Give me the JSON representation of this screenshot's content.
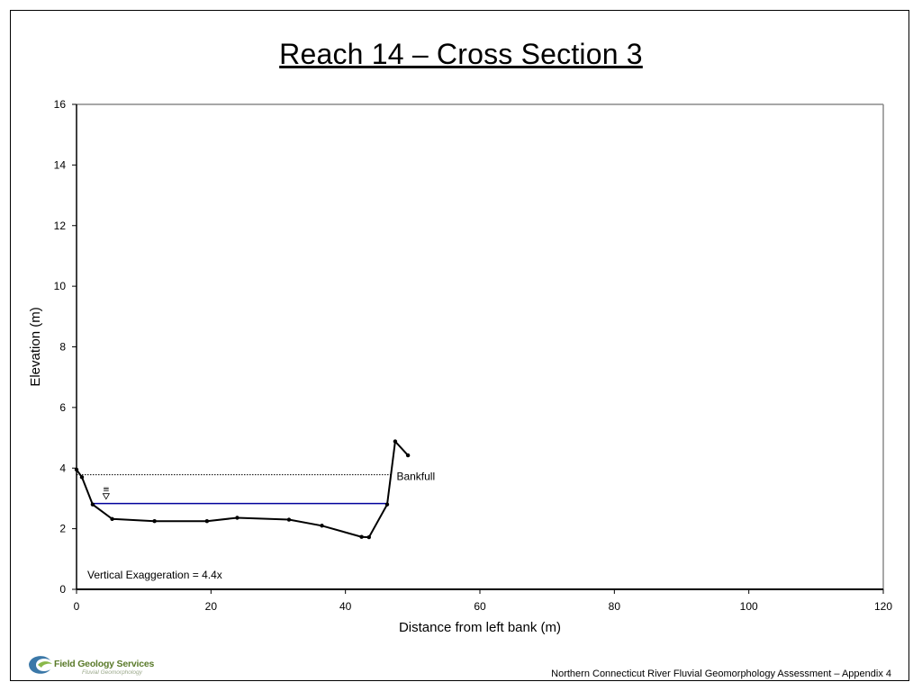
{
  "title": "Reach 14 – Cross Section 3",
  "footer": "Northern Connecticut River Fluvial Geomorphology Assessment – Appendix 4",
  "logo": {
    "name": "Field Geology Services",
    "tagline": "Fluvial Geomorphology",
    "icon": "fgs-swoosh-logo"
  },
  "chart_data": {
    "type": "line",
    "xlabel": "Distance from left bank (m)",
    "ylabel": "Elevation (m)",
    "xlim": [
      0,
      120
    ],
    "ylim": [
      0,
      16
    ],
    "xticks": [
      0,
      20,
      40,
      60,
      80,
      100,
      120
    ],
    "yticks": [
      0,
      2,
      4,
      6,
      8,
      10,
      12,
      14,
      16
    ],
    "grid": false,
    "series": [
      {
        "points": [
          [
            0.0,
            3.95
          ],
          [
            0.8,
            3.7
          ],
          [
            2.4,
            2.8
          ],
          [
            5.3,
            2.32
          ],
          [
            11.6,
            2.25
          ],
          [
            19.4,
            2.25
          ],
          [
            23.9,
            2.36
          ],
          [
            31.6,
            2.3
          ],
          [
            36.5,
            2.1
          ],
          [
            42.4,
            1.73
          ],
          [
            43.5,
            1.72
          ],
          [
            46.2,
            2.8
          ],
          [
            47.4,
            4.88
          ],
          [
            49.3,
            4.42
          ]
        ],
        "color": "#000000"
      }
    ],
    "bankfull": {
      "label": "Bankfull",
      "y": 3.78,
      "x": [
        0.0,
        46.8
      ]
    },
    "water_surface": {
      "y": 2.83,
      "x": [
        2.4,
        46.2
      ],
      "color": "#00009c"
    },
    "annotation": "Vertical Exaggeration = 4.4x",
    "water_symbol": "≡"
  }
}
